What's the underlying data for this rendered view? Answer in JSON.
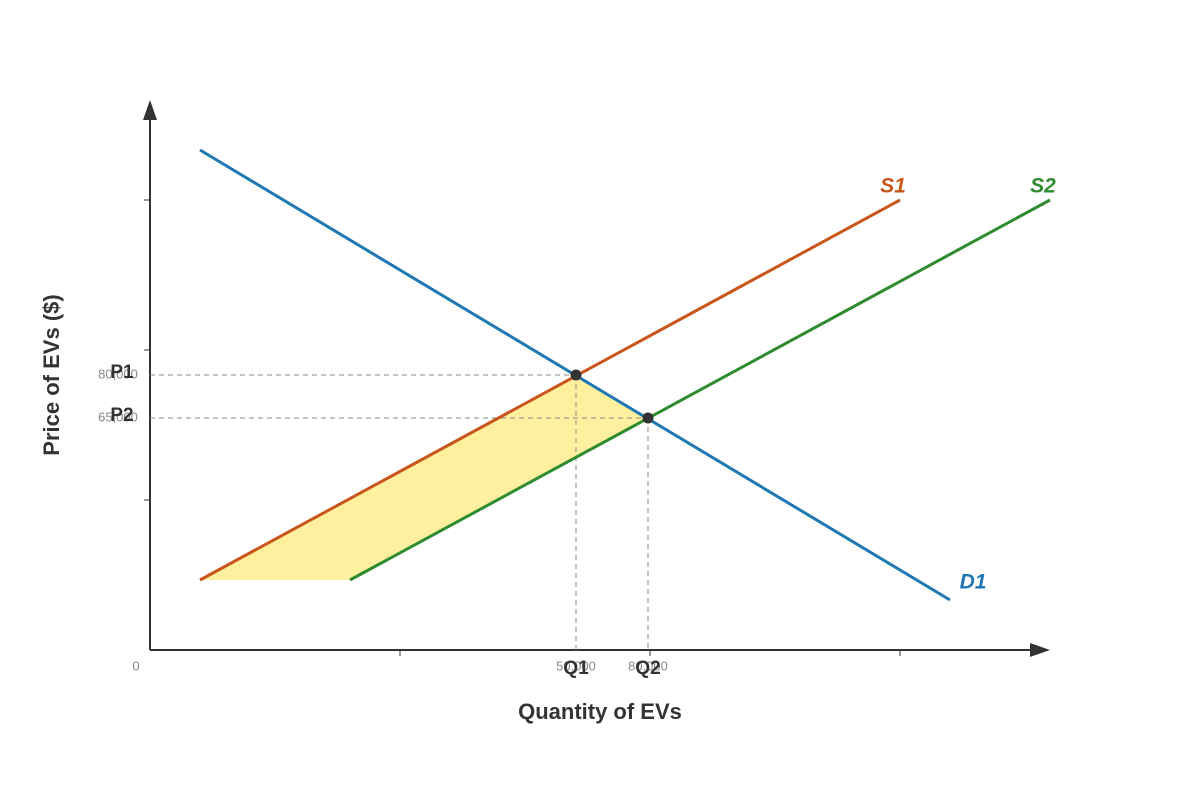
{
  "chart_data": {
    "type": "line",
    "x_label": "Quantity of EVs",
    "y_label": "Price of EVs ($)",
    "origin_label": "0",
    "xlim": [
      0,
      90
    ],
    "ylim": [
      0,
      55
    ],
    "series": [
      {
        "name": "D1",
        "color": "#1f77b4",
        "x": [
          5,
          80
        ],
        "values": [
          50,
          5
        ]
      },
      {
        "name": "S1",
        "color": "#c8561a",
        "x": [
          5,
          75
        ],
        "values": [
          7,
          45
        ]
      },
      {
        "name": "S2",
        "color": "#2e8b2e",
        "x": [
          20,
          90
        ],
        "values": [
          7,
          45
        ]
      }
    ],
    "equilibria": [
      {
        "price_name": "P1",
        "quantity_name": "Q1",
        "price": "80,000",
        "quantity": "50,000",
        "x": 42.6,
        "y": 27.5
      },
      {
        "price_name": "P2",
        "quantity_name": "Q2",
        "price": "65,000",
        "quantity": "80,000",
        "x": 49.8,
        "y": 23.2
      }
    ],
    "shaded_region": {
      "color": "#fff0a0",
      "x": [
        5,
        42.6,
        49.8,
        20
      ],
      "values": [
        7,
        27.5,
        23.2,
        7
      ]
    }
  }
}
